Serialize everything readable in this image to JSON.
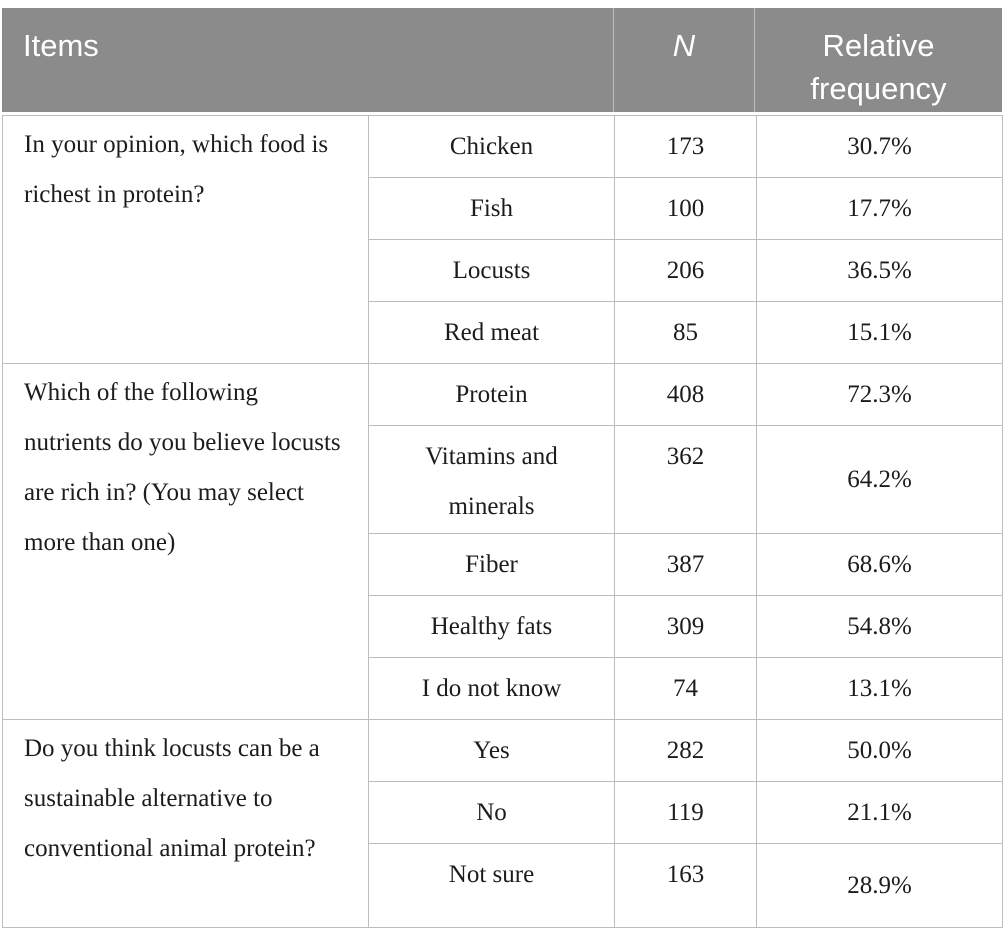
{
  "colors": {
    "header_bg": "#8b8b8b",
    "header_text": "#ffffff",
    "border": "#bdbdbd",
    "text": "#1c1c1c"
  },
  "table": {
    "header": {
      "items": "Items",
      "n": "N",
      "relative_frequency": "Relative frequency"
    },
    "groups": [
      {
        "question": "In your opinion, which food is richest in protein?",
        "rows": [
          {
            "option": "Chicken",
            "n": "173",
            "rf": "30.7%"
          },
          {
            "option": "Fish",
            "n": "100",
            "rf": "17.7%"
          },
          {
            "option": "Locusts",
            "n": "206",
            "rf": "36.5%"
          },
          {
            "option": "Red meat",
            "n": "85",
            "rf": "15.1%"
          }
        ]
      },
      {
        "question": "Which of the following nutrients do you believe locusts are rich in? (You may select more than one)",
        "rows": [
          {
            "option": "Protein",
            "n": "408",
            "rf": "72.3%"
          },
          {
            "option": "Vitamins and minerals",
            "n": "362",
            "rf": "64.2%"
          },
          {
            "option": "Fiber",
            "n": "387",
            "rf": "68.6%"
          },
          {
            "option": "Healthy fats",
            "n": "309",
            "rf": "54.8%"
          },
          {
            "option": "I do not know",
            "n": "74",
            "rf": "13.1%"
          }
        ]
      },
      {
        "question": "Do you think locusts can be a sustainable alternative to conventional animal protein?",
        "rows": [
          {
            "option": "Yes",
            "n": "282",
            "rf": "50.0%"
          },
          {
            "option": "No",
            "n": "119",
            "rf": "21.1%"
          },
          {
            "option": "Not sure",
            "n": "163",
            "rf": "28.9%"
          }
        ]
      }
    ]
  }
}
